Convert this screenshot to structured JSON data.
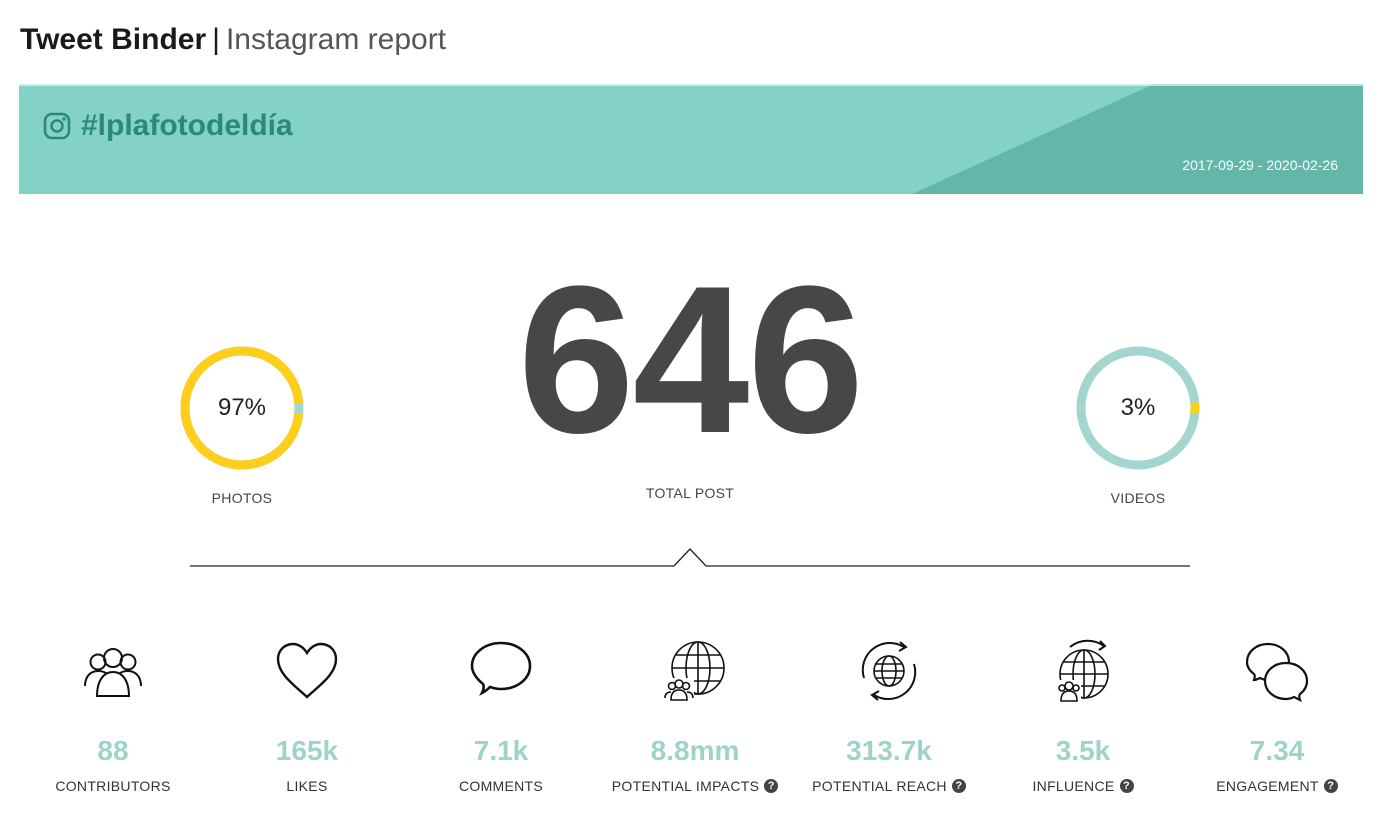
{
  "header": {
    "brand": "Tweet Binder",
    "separator": "|",
    "subtitle": "Instagram report"
  },
  "banner": {
    "icon": "instagram-icon",
    "hashtag": "#lplafotodeldía",
    "date_range": "2017-09-29 - 2020-02-26",
    "colors": {
      "light": "#84d2c5",
      "dark": "#63b7a9",
      "text": "#2a8a7a"
    }
  },
  "photos": {
    "percent_label": "97%",
    "fraction": 0.97,
    "label": "PHOTOS",
    "ring_color": "#fdcf1c",
    "rest_color": "#a2d6ce"
  },
  "total": {
    "value": "646",
    "label": "TOTAL POST"
  },
  "videos": {
    "percent_label": "3%",
    "fraction": 0.03,
    "label": "VIDEOS",
    "ring_color": "#a2d6ce",
    "rest_color": "#fdcf1c"
  },
  "stats": [
    {
      "icon": "contributors-icon",
      "value": "88",
      "label": "CONTRIBUTORS",
      "help": false
    },
    {
      "icon": "heart-icon",
      "value": "165k",
      "label": "LIKES",
      "help": false
    },
    {
      "icon": "speech-bubble-icon",
      "value": "7.1k",
      "label": "COMMENTS",
      "help": false
    },
    {
      "icon": "globe-people-icon",
      "value": "8.8mm",
      "label": "POTENTIAL IMPACTS",
      "help": true
    },
    {
      "icon": "globe-arrows-icon",
      "value": "313.7k",
      "label": "POTENTIAL REACH",
      "help": true
    },
    {
      "icon": "globe-influence-icon",
      "value": "3.5k",
      "label": "INFLUENCE",
      "help": true
    },
    {
      "icon": "chat-bubbles-icon",
      "value": "7.34",
      "label": "ENGAGEMENT",
      "help": true
    }
  ],
  "help_glyph": "?"
}
